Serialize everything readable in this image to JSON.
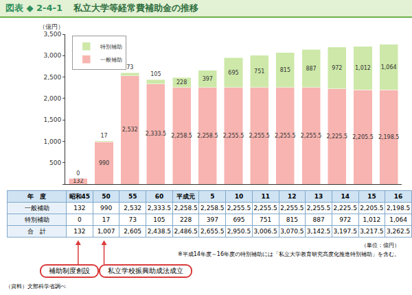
{
  "figure_no": "図表 ◆ 2-4-1",
  "chart_data": {
    "type": "bar",
    "title": "私立大学等経常費補助金の推移",
    "y_label": "（億円）",
    "categories": [
      "昭和45",
      "50",
      "55",
      "60",
      "平成元",
      "5",
      "10",
      "11",
      "12",
      "13",
      "14",
      "15",
      "16"
    ],
    "stacked": true,
    "series": [
      {
        "name": "一般補助",
        "color": "#f7b4b0",
        "values": [
          132,
          990,
          2532,
          2333.5,
          2258.5,
          2258.5,
          2255.5,
          2255.5,
          2255.5,
          2255.5,
          2225.5,
          2205.5,
          2198.5
        ],
        "value_labels": [
          "132",
          "990",
          "2,532",
          "2,333.5",
          "2,258.5",
          "2,258.5",
          "2,255.5",
          "2,255.5",
          "2,255.5",
          "2,255.5",
          "2,225.5",
          "2,205.5",
          "2,198.5"
        ]
      },
      {
        "name": "特別補助",
        "color": "#cde8a8",
        "values": [
          0,
          17,
          73,
          105,
          228,
          397,
          695,
          751,
          815,
          887,
          972,
          1012,
          1064
        ],
        "value_labels": [
          "0",
          "17",
          "73",
          "105",
          "228",
          "397",
          "695",
          "751",
          "815",
          "887",
          "972",
          "1,012",
          "1,064"
        ]
      }
    ],
    "ylim": [
      0,
      3500
    ],
    "yticks": [
      0,
      500,
      {
        "value": 1000,
        "label": "1,000"
      },
      {
        "value": 1500,
        "label": "1,500"
      },
      {
        "value": 2000,
        "label": "2,000"
      },
      {
        "value": 2500,
        "label": "2,500"
      },
      {
        "value": 3000,
        "label": "3,000"
      },
      {
        "value": 3500,
        "label": "3,500"
      }
    ],
    "grid": false,
    "legend": "top-left",
    "data_labels": true,
    "tick_labels": "y"
  },
  "table": {
    "header": "年　度",
    "total_label": "合　計",
    "total": [
      "132",
      "1,007",
      "2,605",
      "2,438.5",
      "2,486.5",
      "2,655.5",
      "2,950.5",
      "3,006.5",
      "3,070.5",
      "3,142.5",
      "3,197.5",
      "3,217.5",
      "3,262.5"
    ]
  },
  "unit_note": "（単位：億円）",
  "footnote": "※平成14年度～16年度の特別補助には「私立大学教育研究高度化推進特別補助」を含む。",
  "callouts": [
    "補助制度創設",
    "私立学校振興助成法成立"
  ],
  "source": "（資料）文部科学省調べ"
}
